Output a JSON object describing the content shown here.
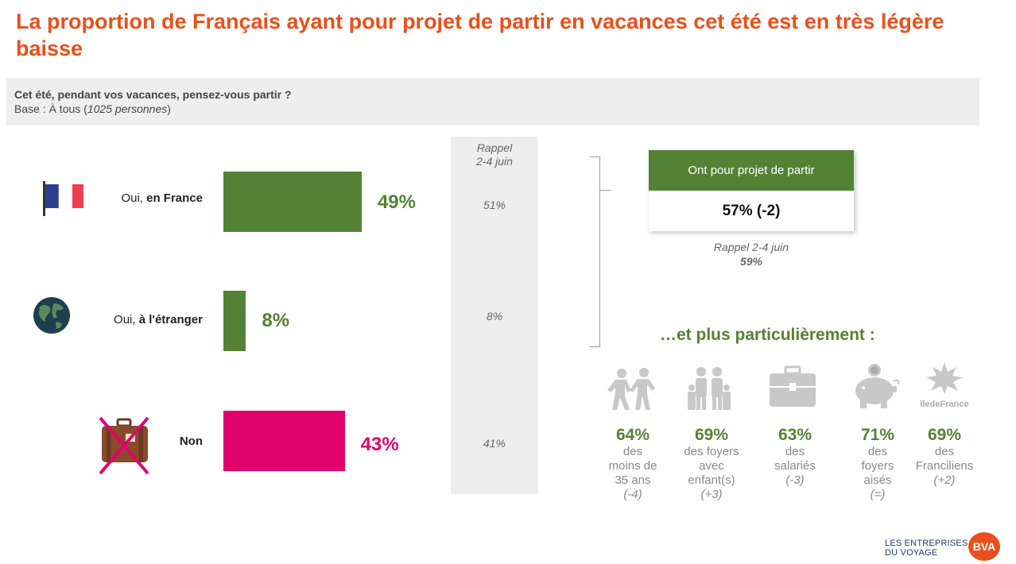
{
  "title": "La proportion de Français ayant pour projet de partir en vacances cet été est en très légère baisse",
  "question": "Cet été, pendant vos vacances, pensez-vous partir ?",
  "base_prefix": "Base : À tous (",
  "base_count": "1025 personnes",
  "base_suffix": ")",
  "rappel_header_line1": "Rappel",
  "rappel_header_line2": "2-4 juin",
  "chart_data": {
    "type": "bar",
    "orientation": "horizontal",
    "categories": [
      {
        "label_prefix": "Oui, ",
        "label_bold": "en France",
        "value_label": "49%",
        "rappel": "51%",
        "color": "#548235",
        "icon": "france-flag-icon"
      },
      {
        "label_prefix": "Oui, ",
        "label_bold": "à l'étranger",
        "value_label": "8%",
        "rappel": "8%",
        "color": "#548235",
        "icon": "globe-icon"
      },
      {
        "label_prefix": "",
        "label_bold": "Non",
        "value_label": "43%",
        "rappel": "41%",
        "color": "#e0006e",
        "icon": "crossed-suitcase-icon"
      }
    ],
    "values": [
      49,
      8,
      43
    ],
    "xlim": [
      0,
      100
    ]
  },
  "summary": {
    "header": "Ont pour projet de partir",
    "value": "57% (-2)",
    "rappel_label": "Rappel 2-4 juin",
    "rappel_value": "59%"
  },
  "particulierement": "…et plus particulièrement :",
  "segments": [
    {
      "icon": "young-people-icon",
      "value": "64%",
      "desc": [
        "des",
        "moins de",
        "35 ans"
      ],
      "delta": "(-4)"
    },
    {
      "icon": "family-icon",
      "value": "69%",
      "desc": [
        "des foyers",
        "avec",
        "enfant(s)"
      ],
      "delta": "(+3)"
    },
    {
      "icon": "briefcase-icon",
      "value": "63%",
      "desc": [
        "des",
        "salariés"
      ],
      "delta": "(-3)"
    },
    {
      "icon": "piggy-bank-icon",
      "value": "71%",
      "desc": [
        "des",
        "foyers",
        "aisés"
      ],
      "delta": "(=)"
    },
    {
      "icon": "ile-de-france-icon",
      "icon_text": "îledeFrance",
      "value": "69%",
      "desc": [
        "des",
        "Franciliens"
      ],
      "delta": "(+2)"
    }
  ],
  "logo_line1": "LES ENTREPRISES",
  "logo_line2": "DU VOYAGE",
  "logo_bva": "BVA",
  "colors": {
    "accent": "#e8501b",
    "green": "#548235",
    "magenta": "#e0006e"
  }
}
